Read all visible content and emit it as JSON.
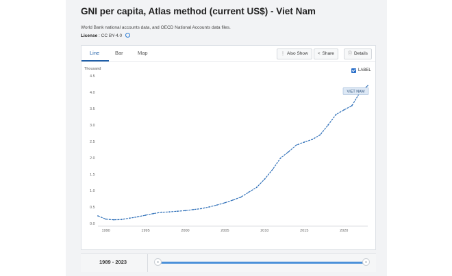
{
  "header": {
    "title": "GNI per capita, Atlas method (current US$) - Viet Nam",
    "source": "World Bank national accounts data, and OECD National Accounts data files.",
    "license_label": "License",
    "license_value": ": CC BY-4.0"
  },
  "tabs": [
    {
      "label": "Line",
      "active": true
    },
    {
      "label": "Bar",
      "active": false
    },
    {
      "label": "Map",
      "active": false
    }
  ],
  "toolbar": {
    "also_show": "Also Show",
    "share": "Share",
    "details": "Details"
  },
  "label_toggle": {
    "text": "LABEL",
    "checked": true
  },
  "colors": {
    "accent": "#1f5fa8",
    "line": "#2e6fb8"
  },
  "chart_data": {
    "type": "line",
    "ylabel": "Thousand",
    "ylim": [
      0,
      4.5
    ],
    "yticks": [
      "0.0",
      "0.5",
      "1.0",
      "1.5",
      "2.0",
      "2.5",
      "3.0",
      "3.5",
      "4.0",
      "4.5"
    ],
    "xticks": [
      "1990",
      "1995",
      "2000",
      "2005",
      "2010",
      "2015",
      "2020"
    ],
    "series_label": "VIET NAM",
    "series": [
      {
        "x": [
          1989,
          1990,
          1991,
          1992,
          1993,
          1994,
          1995,
          1996,
          1997,
          1998,
          1999,
          2000,
          2001,
          2002,
          2003,
          2004,
          2005,
          2006,
          2007,
          2008,
          2009,
          2010,
          2011,
          2012,
          2013,
          2014,
          2015,
          2016,
          2017,
          2018,
          2019,
          2020,
          2021,
          2022,
          2023
        ],
        "values": [
          0.23,
          0.13,
          0.11,
          0.12,
          0.16,
          0.2,
          0.25,
          0.3,
          0.34,
          0.35,
          0.37,
          0.39,
          0.42,
          0.45,
          0.5,
          0.56,
          0.63,
          0.71,
          0.8,
          0.95,
          1.1,
          1.35,
          1.64,
          1.99,
          2.18,
          2.39,
          2.48,
          2.56,
          2.7,
          3.0,
          3.32,
          3.46,
          3.59,
          3.99,
          4.2
        ]
      }
    ]
  },
  "footer": {
    "range": "1989 - 2023"
  }
}
